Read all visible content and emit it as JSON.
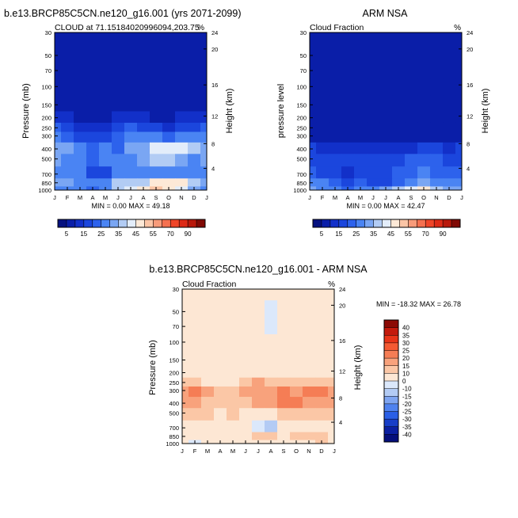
{
  "months": [
    "J",
    "F",
    "M",
    "A",
    "M",
    "J",
    "J",
    "A",
    "S",
    "O",
    "N",
    "D",
    "J"
  ],
  "pressure_ticks": [
    "30",
    "50",
    "70",
    "100",
    "150",
    "200",
    "250",
    "300",
    "400",
    "500",
    "700",
    "850",
    "1000"
  ],
  "height_ticks": [
    "24",
    "20",
    "16",
    "12",
    "8",
    "4"
  ],
  "panels": {
    "model": {
      "title": "b.e13.BRCP85C5CN.ne120_g16.001 (yrs 2071-2099)",
      "left_string": "CLOUD at 71.15184020996094,203.75",
      "units": "%",
      "ylabel": "Pressure (mb)",
      "rlabel": "Height (km)",
      "minmax": "MIN =   0.00 MAX =  49.18"
    },
    "obs": {
      "title": "ARM NSA",
      "left_string": "Cloud Fraction",
      "units": "%",
      "ylabel": "pressure level",
      "rlabel": "Height (km)",
      "minmax": "MIN =   0.00 MAX =  42.47"
    },
    "diff": {
      "title": "b.e13.BRCP85C5CN.ne120_g16.001 - ARM NSA",
      "left_string": "Cloud Fraction",
      "units": "%",
      "ylabel": "Pressure (mb)",
      "rlabel": "Height (km)",
      "minmax": "MIN = -18.32 MAX =  26.78"
    }
  },
  "colorbar_abs": {
    "labels": [
      "5",
      "15",
      "25",
      "35",
      "45",
      "55",
      "70",
      "90"
    ],
    "colors": [
      "#06117f",
      "#0a1ea8",
      "#1230c9",
      "#1b46dd",
      "#2d62ec",
      "#4a84f3",
      "#7aa6f3",
      "#b2ccf4",
      "#e3edfa",
      "#fde9d7",
      "#fbc5a6",
      "#f79b7a",
      "#f4704f",
      "#ef4528",
      "#dd2a16",
      "#b8180b",
      "#800a05"
    ]
  },
  "colorbar_diff": {
    "labels": [
      "40",
      "35",
      "30",
      "25",
      "20",
      "15",
      "10",
      "0",
      "-10",
      "-15",
      "-20",
      "-25",
      "-30",
      "-35",
      "-40"
    ],
    "colors": [
      "#8c0a05",
      "#c41a0c",
      "#e83418",
      "#f45a33",
      "#f57d55",
      "#f8a27c",
      "#fbc7a6",
      "#fde7d4",
      "#dbe8fb",
      "#b3cbf4",
      "#7fa5f1",
      "#4f82ef",
      "#2a5fe6",
      "#173ec8",
      "#0b20a2",
      "#050f7b"
    ]
  },
  "chart_data": [
    {
      "type": "heatmap",
      "title": "b.e13.BRCP85C5CN.ne120_g16.001 (yrs 2071-2099)",
      "subtitle": "CLOUD at 71.15184020996094,203.75",
      "ylabel": "Pressure (mb)",
      "y2label": "Height (km)",
      "x": [
        "J",
        "F",
        "M",
        "A",
        "M",
        "J",
        "J",
        "A",
        "S",
        "O",
        "N",
        "D",
        "J"
      ],
      "y": [
        30,
        50,
        70,
        100,
        150,
        200,
        250,
        300,
        400,
        500,
        700,
        850,
        1000
      ],
      "min": 0.0,
      "max": 49.18,
      "values": [
        [
          0,
          0,
          0,
          0,
          0,
          0,
          0,
          0,
          0,
          0,
          0,
          0,
          0
        ],
        [
          0,
          0,
          0,
          0,
          0,
          0,
          0,
          0,
          0,
          0,
          0,
          0,
          0
        ],
        [
          0,
          0,
          0,
          0,
          0,
          0,
          0,
          0,
          0,
          0,
          0,
          0,
          0
        ],
        [
          0,
          0,
          0,
          0,
          0,
          0,
          0,
          0,
          0,
          0,
          0,
          0,
          0
        ],
        [
          0,
          0,
          0,
          0,
          0,
          0,
          0,
          0,
          0,
          0,
          0,
          0,
          0
        ],
        [
          8,
          5,
          3,
          2,
          3,
          6,
          8,
          6,
          4,
          3,
          5,
          7,
          8
        ],
        [
          15,
          12,
          8,
          6,
          7,
          10,
          15,
          12,
          10,
          8,
          12,
          14,
          15
        ],
        [
          20,
          18,
          14,
          12,
          14,
          16,
          22,
          20,
          22,
          18,
          24,
          22,
          20
        ],
        [
          28,
          26,
          22,
          18,
          22,
          18,
          25,
          25,
          35,
          38,
          36,
          30,
          28
        ],
        [
          25,
          24,
          22,
          18,
          22,
          20,
          22,
          26,
          32,
          30,
          26,
          24,
          25
        ],
        [
          22,
          20,
          22,
          10,
          12,
          20,
          22,
          20,
          24,
          22,
          22,
          20,
          22
        ],
        [
          28,
          26,
          24,
          20,
          22,
          30,
          32,
          34,
          40,
          42,
          40,
          30,
          28
        ],
        [
          22,
          20,
          22,
          18,
          20,
          32,
          38,
          42,
          46,
          40,
          38,
          26,
          22
        ]
      ]
    },
    {
      "type": "heatmap",
      "title": "ARM NSA",
      "subtitle": "Cloud Fraction",
      "ylabel": "pressure level",
      "y2label": "Height (km)",
      "x": [
        "J",
        "F",
        "M",
        "A",
        "M",
        "J",
        "J",
        "A",
        "S",
        "O",
        "N",
        "D",
        "J"
      ],
      "y": [
        30,
        50,
        70,
        100,
        150,
        200,
        250,
        300,
        400,
        500,
        700,
        850,
        1000
      ],
      "min": 0.0,
      "max": 42.47,
      "values": [
        [
          0,
          0,
          0,
          0,
          0,
          0,
          0,
          0,
          0,
          0,
          0,
          0,
          0
        ],
        [
          0,
          0,
          0,
          0,
          0,
          0,
          0,
          0,
          0,
          0,
          0,
          0,
          0
        ],
        [
          0,
          0,
          0,
          0,
          0,
          0,
          0,
          0,
          0,
          0,
          0,
          0,
          0
        ],
        [
          0,
          0,
          0,
          0,
          0,
          0,
          0,
          0,
          0,
          0,
          0,
          0,
          0
        ],
        [
          0,
          0,
          0,
          0,
          0,
          0,
          0,
          0,
          0,
          0,
          0,
          0,
          0
        ],
        [
          0,
          0,
          0,
          0,
          0,
          0,
          0,
          0,
          0,
          0,
          0,
          0,
          0
        ],
        [
          0,
          0,
          0,
          0,
          0,
          0,
          0,
          0,
          0,
          0,
          0,
          0,
          0
        ],
        [
          4,
          3,
          2,
          1,
          2,
          3,
          4,
          3,
          2,
          3,
          4,
          4,
          4
        ],
        [
          10,
          8,
          6,
          5,
          6,
          8,
          8,
          8,
          9,
          10,
          10,
          9,
          10
        ],
        [
          14,
          12,
          10,
          10,
          12,
          14,
          14,
          14,
          15,
          16,
          16,
          14,
          14
        ],
        [
          16,
          14,
          10,
          8,
          10,
          12,
          12,
          16,
          18,
          20,
          18,
          16,
          16
        ],
        [
          22,
          20,
          18,
          14,
          16,
          10,
          12,
          18,
          22,
          26,
          24,
          20,
          22
        ],
        [
          26,
          22,
          20,
          18,
          22,
          24,
          28,
          34,
          38,
          40,
          34,
          28,
          26
        ]
      ]
    },
    {
      "type": "heatmap",
      "title": "b.e13.BRCP85C5CN.ne120_g16.001 - ARM NSA",
      "subtitle": "Cloud Fraction",
      "ylabel": "Pressure (mb)",
      "y2label": "Height (km)",
      "x": [
        "J",
        "F",
        "M",
        "A",
        "M",
        "J",
        "J",
        "A",
        "S",
        "O",
        "N",
        "D",
        "J"
      ],
      "y": [
        30,
        50,
        70,
        100,
        150,
        200,
        250,
        300,
        400,
        500,
        700,
        850,
        1000
      ],
      "min": -18.32,
      "max": 26.78,
      "values": [
        [
          2,
          2,
          2,
          2,
          2,
          2,
          2,
          2,
          2,
          2,
          2,
          2,
          2
        ],
        [
          2,
          2,
          2,
          2,
          2,
          2,
          2,
          -6,
          2,
          2,
          2,
          2,
          2
        ],
        [
          2,
          2,
          2,
          2,
          2,
          2,
          2,
          -8,
          2,
          2,
          2,
          2,
          2
        ],
        [
          2,
          2,
          2,
          2,
          2,
          2,
          2,
          2,
          2,
          2,
          2,
          2,
          2
        ],
        [
          2,
          2,
          2,
          2,
          2,
          2,
          2,
          2,
          2,
          2,
          2,
          2,
          2
        ],
        [
          8,
          5,
          3,
          2,
          3,
          6,
          8,
          6,
          4,
          3,
          5,
          7,
          8
        ],
        [
          14,
          12,
          8,
          6,
          7,
          10,
          18,
          12,
          10,
          12,
          14,
          13,
          14
        ],
        [
          18,
          20,
          17,
          12,
          14,
          16,
          19,
          16,
          20,
          18,
          24,
          20,
          18
        ],
        [
          16,
          17,
          14,
          12,
          14,
          10,
          15,
          15,
          20,
          20,
          18,
          16,
          16
        ],
        [
          11,
          12,
          12,
          8,
          10,
          6,
          4,
          2,
          12,
          14,
          10,
          10,
          11
        ],
        [
          6,
          6,
          8,
          4,
          2,
          2,
          -8,
          -12,
          4,
          4,
          4,
          4,
          6
        ],
        [
          4,
          6,
          6,
          4,
          4,
          8,
          10,
          14,
          8,
          14,
          10,
          10,
          4
        ],
        [
          2,
          -4,
          2,
          2,
          2,
          2,
          2,
          4,
          6,
          2,
          4,
          14,
          2
        ]
      ]
    }
  ]
}
